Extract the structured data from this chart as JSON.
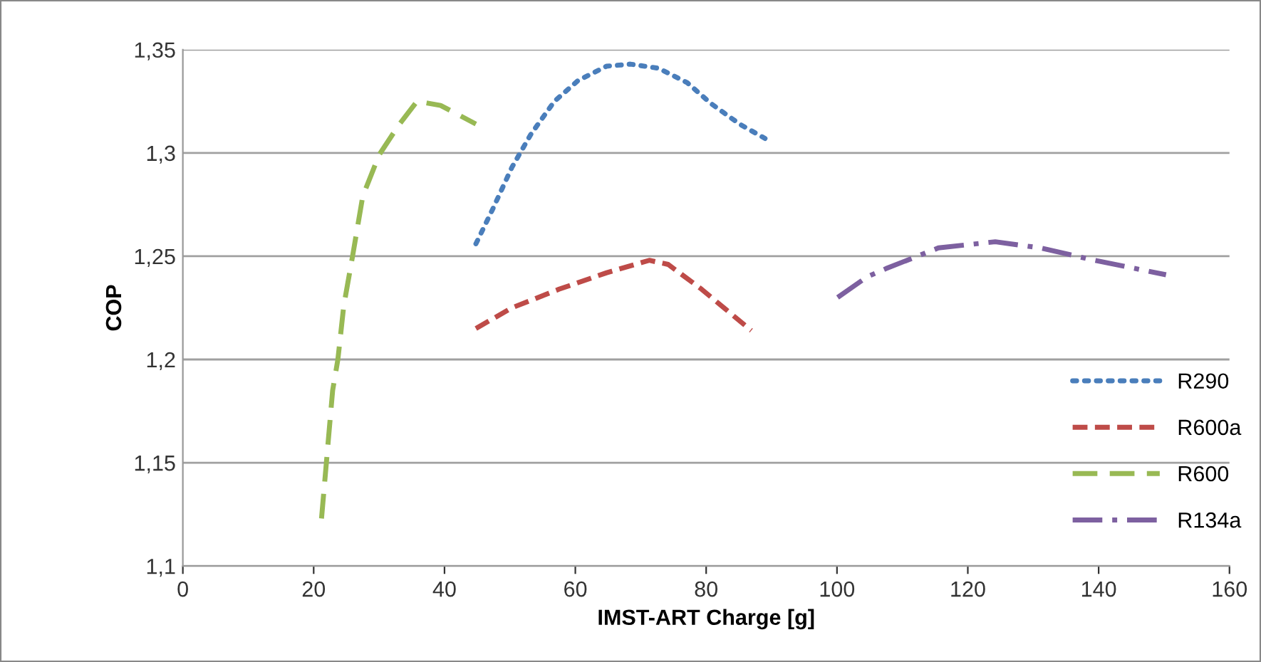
{
  "chart_data": {
    "type": "line",
    "xlabel": "IMST-ART Charge [g]",
    "ylabel": "COP",
    "xlim": [
      0,
      160
    ],
    "xticks": [
      0,
      20,
      40,
      60,
      80,
      100,
      120,
      140,
      160
    ],
    "ylim": [
      1.1,
      1.35
    ],
    "yticks": [
      {
        "value": 1.1,
        "label": "1,1"
      },
      {
        "value": 1.15,
        "label": "1,15"
      },
      {
        "value": 1.2,
        "label": "1,2"
      },
      {
        "value": 1.25,
        "label": "1,25"
      },
      {
        "value": 1.3,
        "label": "1,3"
      },
      {
        "value": 1.35,
        "label": "1,35"
      }
    ],
    "grid": "y",
    "legend": "right",
    "marker": "none",
    "series": [
      {
        "name": "R290",
        "color": "#4a7ebb",
        "line_style": "dotted",
        "x": [
          44.8,
          47.4,
          50.3,
          53.2,
          56.8,
          60.4,
          64.8,
          68.4,
          72.7,
          77.1,
          80.7,
          85.1,
          89.0
        ],
        "values": [
          1.256,
          1.273,
          1.293,
          1.309,
          1.325,
          1.335,
          1.342,
          1.343,
          1.341,
          1.334,
          1.324,
          1.314,
          1.307
        ]
      },
      {
        "name": "R600a",
        "color": "#be4b48",
        "line_style": "dashed",
        "x": [
          44.8,
          50.3,
          57.5,
          64.8,
          71.3,
          74.2,
          79.3,
          86.9
        ],
        "values": [
          1.215,
          1.225,
          1.234,
          1.242,
          1.248,
          1.246,
          1.234,
          1.214
        ]
      },
      {
        "name": "R600",
        "color": "#98b954",
        "line_style": "longdash",
        "x": [
          21.2,
          22.9,
          23.7,
          24.6,
          26.0,
          27.5,
          30.0,
          32.9,
          35.8,
          39.4,
          44.8
        ],
        "values": [
          1.123,
          1.185,
          1.2,
          1.226,
          1.251,
          1.279,
          1.299,
          1.313,
          1.325,
          1.323,
          1.314
        ]
      },
      {
        "name": "R134a",
        "color": "#7d60a0",
        "line_style": "dashdot",
        "x": [
          100.1,
          104.6,
          107.5,
          115.5,
          124.2,
          131.1,
          139.4,
          150.3
        ],
        "values": [
          1.23,
          1.24,
          1.244,
          1.254,
          1.257,
          1.254,
          1.248,
          1.241
        ]
      }
    ]
  }
}
